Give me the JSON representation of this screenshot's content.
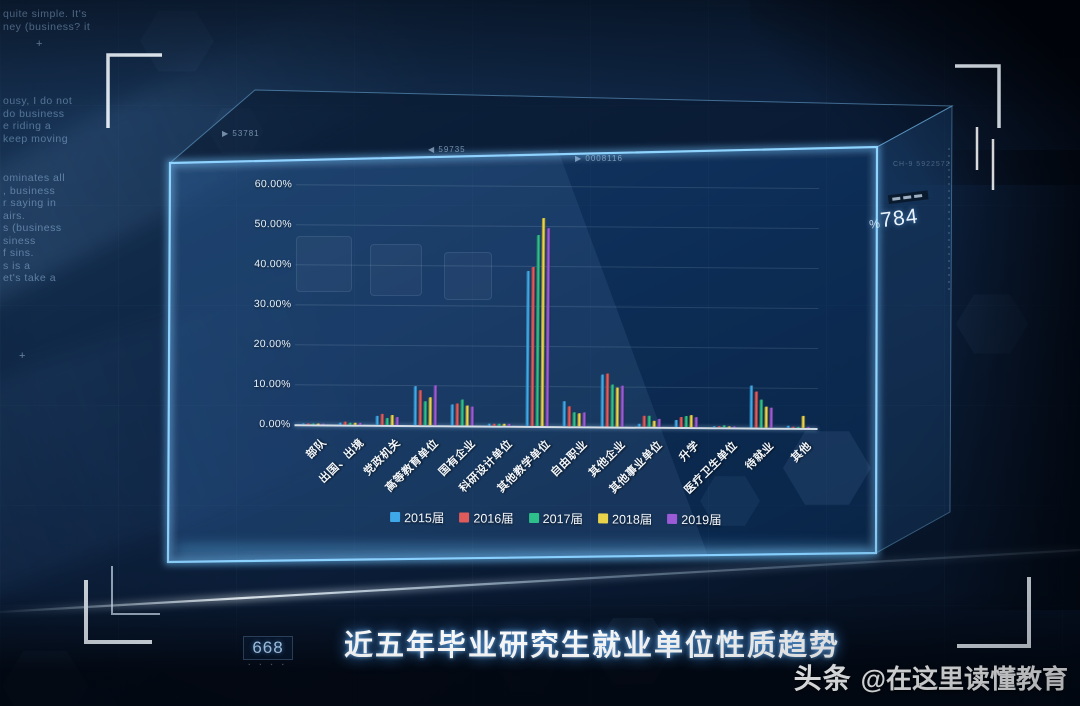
{
  "colors": {
    "box_edge": "#8fd4ff",
    "axis_text": "#e9f2fb",
    "title_glow": "#3f9fff",
    "bracket": "#f2f8ff"
  },
  "background": {
    "text_fragments": [
      {
        "lines": [
          "quite simple. It's",
          "ney (business? it"
        ]
      },
      {
        "lines": [
          "ousy, I do not",
          "do business",
          "e riding a",
          "keep moving"
        ]
      },
      {
        "lines": [
          "ominates all",
          ", business",
          "r saying in",
          "airs.",
          "s (business",
          "siness",
          "f sins.",
          "s is a",
          "et's take a"
        ]
      }
    ],
    "plus_marks": [
      "+",
      "+"
    ],
    "hud_markers": [
      {
        "label": "▶ 53781"
      },
      {
        "label": "◀ 59735"
      },
      {
        "label": "▶ 0008116"
      }
    ],
    "channel_label": "CH-9",
    "channel_digits": "5922572",
    "percent_badge": {
      "symbol": "%",
      "number": "784"
    },
    "counter_badge": {
      "number": "668",
      "dots": "▪ ▪ ▪ ▪"
    }
  },
  "chart_data": {
    "type": "bar",
    "title": "近五年毕业研究生就业单位性质趋势",
    "categories": [
      "部队",
      "出国、出境",
      "党政机关",
      "高等教育单位",
      "国有企业",
      "科研设计单位",
      "其他教学单位",
      "自由职业",
      "其他企业",
      "其他事业单位",
      "升学",
      "医疗卫生单位",
      "待就业",
      "其他"
    ],
    "series": [
      {
        "name": "2015届",
        "color": "#3FA8E8",
        "values": [
          0.1,
          0.4,
          2.2,
          9.8,
          5.3,
          0.5,
          38.8,
          6.2,
          13.0,
          0.8,
          1.8,
          0.3,
          10.4,
          0.6
        ]
      },
      {
        "name": "2016届",
        "color": "#E25B5B",
        "values": [
          0.15,
          0.8,
          2.8,
          8.7,
          5.6,
          0.4,
          39.8,
          5.0,
          13.2,
          2.7,
          2.4,
          0.3,
          9.0,
          0.2
        ]
      },
      {
        "name": "2017届",
        "color": "#2EC08A",
        "values": [
          0.1,
          0.6,
          1.8,
          6.1,
          6.4,
          0.6,
          47.8,
          3.6,
          10.5,
          2.7,
          2.7,
          0.4,
          6.9,
          0.3
        ]
      },
      {
        "name": "2018届",
        "color": "#E8D34A",
        "values": [
          0.1,
          0.4,
          2.6,
          6.9,
          4.9,
          0.5,
          52.0,
          3.2,
          9.7,
          1.4,
          3.1,
          0.3,
          5.3,
          3.1
        ]
      },
      {
        "name": "2019届",
        "color": "#9C5BD6",
        "values": [
          0.1,
          0.5,
          2.1,
          10.0,
          4.8,
          0.4,
          49.5,
          3.4,
          10.3,
          2.1,
          2.5,
          0.3,
          4.9,
          0.2
        ]
      }
    ],
    "y_ticks": [
      "60.00%",
      "50.00%",
      "40.00%",
      "30.00%",
      "20.00%",
      "10.00%",
      "0.00%"
    ],
    "ylim": [
      0,
      60
    ],
    "y_step": 10,
    "grid": true,
    "legend_position": "bottom"
  },
  "footer": {
    "title": "近五年毕业研究生就业单位性质趋势"
  },
  "watermark": {
    "logo": "头条",
    "handle": "@在这里读懂教育"
  }
}
